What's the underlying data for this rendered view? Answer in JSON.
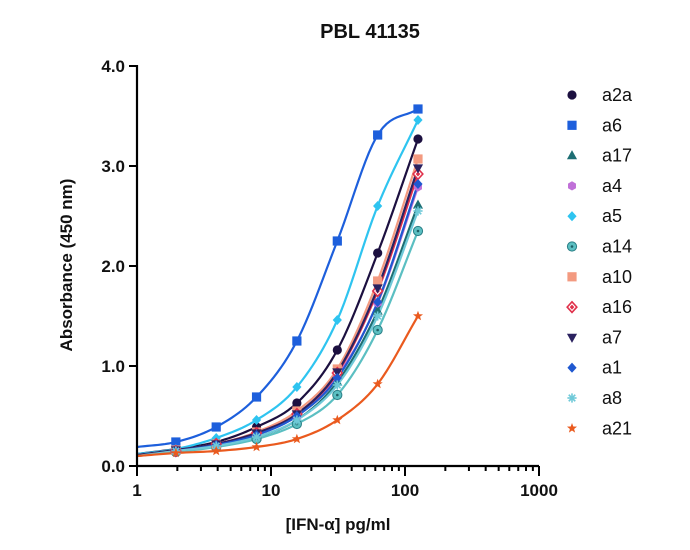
{
  "chart_data": {
    "type": "scatter",
    "title": "PBL 41135",
    "xlabel": "[IFN-α] pg/ml",
    "ylabel": "Absorbance (450 nm)",
    "x_scale": "log",
    "xlim": [
      1,
      1000
    ],
    "ylim": [
      0,
      4
    ],
    "x_ticks": [
      1,
      10,
      100,
      1000
    ],
    "x_tick_labels": [
      "1",
      "10",
      "100",
      "1000"
    ],
    "y_ticks": [
      0,
      1,
      2,
      3,
      4
    ],
    "y_tick_labels": [
      "0.0",
      "1.0",
      "2.0",
      "3.0",
      "4.0"
    ],
    "legend_position": "right",
    "grid": false,
    "x": [
      1.95,
      3.9,
      7.8,
      15.6,
      31.25,
      62.5,
      125
    ],
    "series": [
      {
        "name": "a2a",
        "color": "#1c1040",
        "marker": "circle",
        "values": [
          0.17,
          0.24,
          0.39,
          0.63,
          1.16,
          2.13,
          3.27
        ],
        "fit_max": 3.6
      },
      {
        "name": "a6",
        "color": "#1d5fdc",
        "marker": "square",
        "values": [
          0.24,
          0.39,
          0.69,
          1.25,
          2.25,
          3.31,
          3.57
        ],
        "fit_max": 3.9
      },
      {
        "name": "a17",
        "color": "#1d6e73",
        "marker": "triangle",
        "values": [
          0.15,
          0.21,
          0.29,
          0.46,
          0.84,
          1.55,
          2.61
        ],
        "fit_max": 2.9
      },
      {
        "name": "a4",
        "color": "#c070d8",
        "marker": "hexagon",
        "values": [
          0.15,
          0.22,
          0.32,
          0.5,
          0.9,
          1.63,
          2.79
        ],
        "fit_max": 3.05
      },
      {
        "name": "a5",
        "color": "#2ec4f0",
        "marker": "diamond",
        "values": [
          0.17,
          0.28,
          0.46,
          0.79,
          1.46,
          2.6,
          3.46
        ],
        "fit_max": 3.75
      },
      {
        "name": "a14",
        "color": "#5bbfc2",
        "marker": "circle-dot",
        "values": [
          0.14,
          0.19,
          0.27,
          0.42,
          0.71,
          1.36,
          2.35
        ],
        "fit_max": 2.6
      },
      {
        "name": "a10",
        "color": "#f39a80",
        "marker": "square",
        "values": [
          0.16,
          0.22,
          0.34,
          0.55,
          0.97,
          1.85,
          3.07
        ],
        "fit_max": 3.3
      },
      {
        "name": "a16",
        "color": "#e0304a",
        "marker": "diamond-open",
        "values": [
          0.15,
          0.22,
          0.33,
          0.52,
          0.93,
          1.75,
          2.92
        ],
        "fit_max": 3.15
      },
      {
        "name": "a7",
        "color": "#2b2260",
        "marker": "triangle-down",
        "values": [
          0.16,
          0.22,
          0.33,
          0.52,
          0.94,
          1.78,
          2.98
        ],
        "fit_max": 3.2
      },
      {
        "name": "a1",
        "color": "#1f58d0",
        "marker": "diamond",
        "values": [
          0.15,
          0.21,
          0.31,
          0.5,
          0.88,
          1.64,
          2.82
        ],
        "fit_max": 3.1
      },
      {
        "name": "a8",
        "color": "#6fc9d8",
        "marker": "asterisk",
        "values": [
          0.15,
          0.2,
          0.29,
          0.46,
          0.81,
          1.5,
          2.55
        ],
        "fit_max": 2.8
      },
      {
        "name": "a21",
        "color": "#ea5a1e",
        "marker": "star",
        "values": [
          0.13,
          0.15,
          0.19,
          0.27,
          0.46,
          0.82,
          1.5
        ],
        "fit_max": 1.75
      }
    ]
  }
}
